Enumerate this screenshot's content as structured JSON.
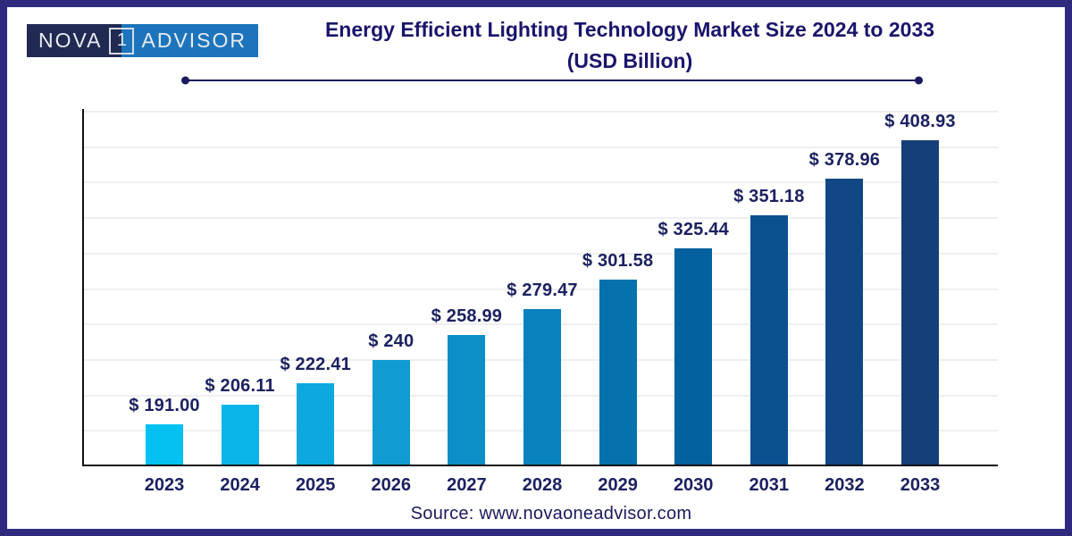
{
  "logo": {
    "part1": "NOVA",
    "part2": "1",
    "part3": "ADVISOR"
  },
  "header": {
    "title": "Energy Efficient Lighting Technology Market Size 2024 to 2033",
    "subtitle": "(USD Billion)"
  },
  "chart_data": {
    "type": "bar",
    "title": "Energy Efficient Lighting Technology Market Size 2024 to 2033 (USD Billion)",
    "categories": [
      "2023",
      "2024",
      "2025",
      "2026",
      "2027",
      "2028",
      "2029",
      "2030",
      "2031",
      "2032",
      "2033"
    ],
    "values": [
      191.0,
      206.11,
      222.41,
      240,
      258.99,
      279.47,
      301.58,
      325.44,
      351.18,
      378.96,
      408.93
    ],
    "value_labels": [
      "$ 191.00",
      "$ 206.11",
      "$ 222.41",
      "$ 240",
      "$ 258.99",
      "$ 279.47",
      "$ 301.58",
      "$ 325.44",
      "$ 351.18",
      "$ 378.96",
      "$ 408.93"
    ],
    "bar_colors": [
      "#05C1F2",
      "#0BB4E8",
      "#0DA8DD",
      "#109BD2",
      "#0C8EC7",
      "#0981BC",
      "#0571AD",
      "#02619E",
      "#0A5190",
      "#104784",
      "#153F78"
    ],
    "xlabel": "",
    "ylabel": "",
    "ylim": [
      160,
      433
    ],
    "grid": "horizontal",
    "legend": "none"
  },
  "footer": {
    "source": "Source: www.novaoneadvisor.com"
  },
  "colors": {
    "border": "#2F2A7D",
    "title": "#1A156B",
    "rule": "#1A1A5E",
    "label": "#1B2160",
    "axis": "#111111",
    "grid": "#EFEFEF",
    "source": "#1A1A5E",
    "logo_left_bg": "#202A52",
    "logo_right_bg": "#1C75BC",
    "logo_text": "#E9EBF2"
  }
}
